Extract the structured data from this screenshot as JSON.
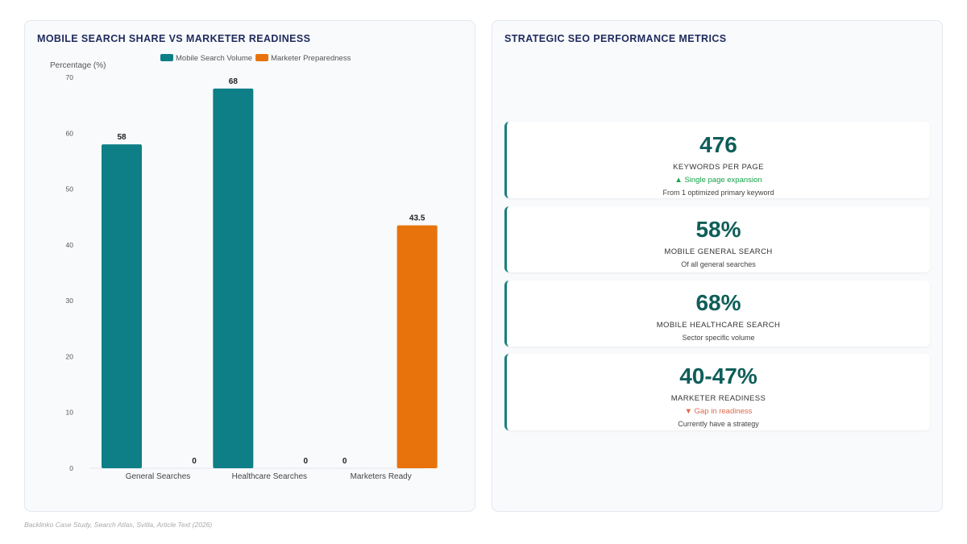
{
  "chart_panel": {
    "title": "MOBILE SEARCH SHARE VS MARKETER READINESS"
  },
  "chart_data": {
    "type": "bar",
    "title": "MOBILE SEARCH SHARE VS MARKETER READINESS",
    "xlabel": "",
    "ylabel": "Percentage (%)",
    "ylim": [
      0,
      70
    ],
    "yticks": [
      "0",
      "10",
      "20",
      "30",
      "40",
      "50",
      "60",
      "70"
    ],
    "categories": [
      "General Searches",
      "Healthcare Searches",
      "Marketers Ready"
    ],
    "series": [
      {
        "name": "Mobile Search Volume",
        "color": "#0e7f86",
        "values": [
          58,
          68,
          0
        ],
        "labels": [
          "58",
          "68",
          "0"
        ]
      },
      {
        "name": "Marketer Preparedness",
        "color": "#e8730c",
        "values": [
          0,
          0,
          43.5
        ],
        "labels": [
          "0",
          "0",
          "43.5"
        ]
      }
    ],
    "legend": "top-center",
    "grid": false
  },
  "metrics_panel": {
    "title": "STRATEGIC SEO PERFORMANCE METRICS",
    "cards": [
      {
        "value": "476",
        "label": "KEYWORDS PER PAGE",
        "trend": "▲ Single page expansion",
        "trend_dir": "up",
        "sub": "From 1 optimized primary keyword"
      },
      {
        "value": "58%",
        "label": "MOBILE GENERAL SEARCH",
        "trend": "",
        "trend_dir": "",
        "sub": "Of all general searches"
      },
      {
        "value": "68%",
        "label": "MOBILE HEALTHCARE SEARCH",
        "trend": "",
        "trend_dir": "",
        "sub": "Sector specific volume"
      },
      {
        "value": "40-47%",
        "label": "MARKETER READINESS",
        "trend": "▼ Gap in readiness",
        "trend_dir": "down",
        "sub": "Currently have a strategy"
      }
    ]
  },
  "footer": {
    "source": "Backlinko Case Study, Search Atlas, Svitla, Article Text (2026)"
  }
}
